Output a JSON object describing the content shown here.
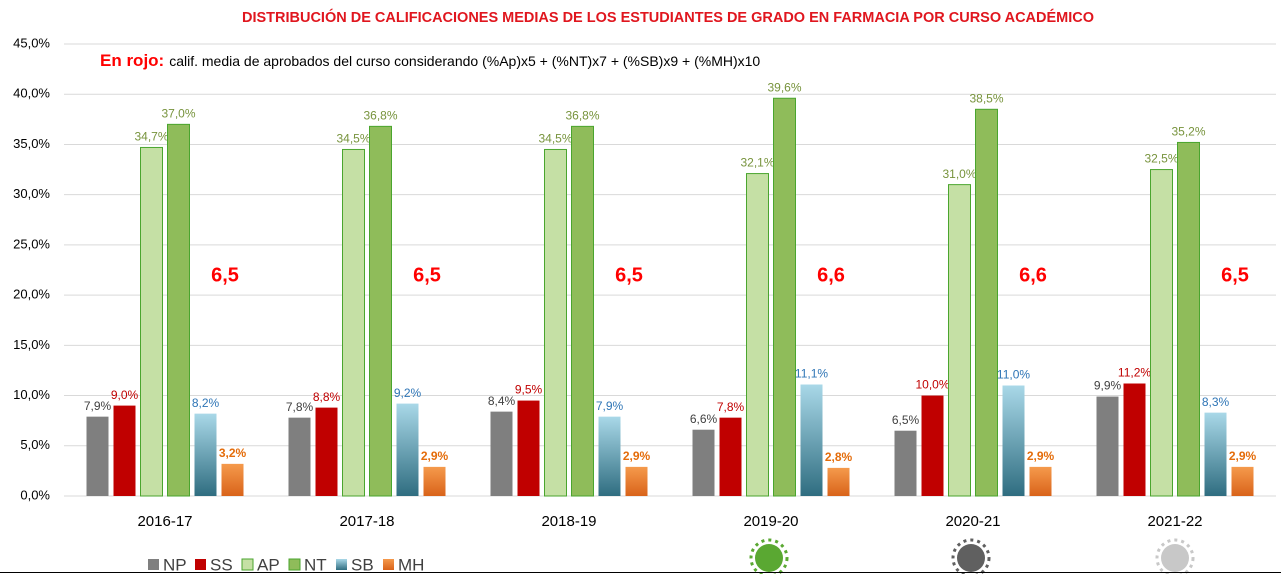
{
  "chart_data": {
    "type": "bar",
    "title": "DISTRIBUCIÓN DE CALIFICACIONES MEDIAS DE LOS ESTUDIANTES DE GRADO EN FARMACIA POR CURSO ACADÉMICO",
    "annotation_label": "En rojo:",
    "annotation": "calif. media de aprobados del curso considerando (%Ap)x5 + (%NT)x7 + (%SB)x9 + (%MH)x10",
    "group_annotations": [
      "6,5",
      "6,5",
      "6,5",
      "6,6",
      "6,6",
      "6,5"
    ],
    "categories": [
      "2016-17",
      "2017-18",
      "2018-19",
      "2019-20",
      "2020-21",
      "2021-22"
    ],
    "series": [
      {
        "name": "NP",
        "color": "#7f7f7f",
        "label_color": "#404040",
        "values": [
          7.9,
          7.8,
          8.4,
          6.6,
          6.5,
          9.9
        ],
        "value_labels": [
          "7,9%",
          "7,8%",
          "8,4%",
          "6,6%",
          "6,5%",
          "9,9%"
        ]
      },
      {
        "name": "SS",
        "color": "#c00000",
        "label_color": "#c00000",
        "values": [
          9.0,
          8.8,
          9.5,
          7.8,
          10.0,
          11.2
        ],
        "value_labels": [
          "9,0%",
          "8,8%",
          "9,5%",
          "7,8%",
          "10,0%",
          "11,2%"
        ]
      },
      {
        "name": "AP",
        "color": "#c5e0a5",
        "label_color": "#77933c",
        "values": [
          34.7,
          34.5,
          34.5,
          32.1,
          31.0,
          32.5
        ],
        "value_labels": [
          "34,7%",
          "34,5%",
          "34,5%",
          "32,1%",
          "31,0%",
          "32,5%"
        ]
      },
      {
        "name": "NT",
        "color": "#8fbc5a",
        "label_color": "#77933c",
        "values": [
          37.0,
          36.8,
          36.8,
          39.6,
          38.5,
          35.2
        ],
        "value_labels": [
          "37,0%",
          "36,8%",
          "36,8%",
          "39,6%",
          "38,5%",
          "35,2%"
        ]
      },
      {
        "name": "SB",
        "color": "#5fb0cc",
        "label_color": "#2e75b6",
        "values": [
          8.2,
          9.2,
          7.9,
          11.1,
          11.0,
          8.3
        ],
        "value_labels": [
          "8,2%",
          "9,2%",
          "7,9%",
          "11,1%",
          "11,0%",
          "8,3%"
        ]
      },
      {
        "name": "MH",
        "color": "#ed7d31",
        "label_color": "#e46c0a",
        "values": [
          3.2,
          2.9,
          2.9,
          2.8,
          2.9,
          2.9
        ],
        "value_labels": [
          "3,2%",
          "2,9%",
          "2,9%",
          "2,8%",
          "2,9%",
          "2,9%"
        ]
      }
    ],
    "ylim": [
      0,
      45
    ],
    "yticks": [
      {
        "value": 0,
        "label": "0,0%"
      },
      {
        "value": 5,
        "label": "5,0%"
      },
      {
        "value": 10,
        "label": "10,0%"
      },
      {
        "value": 15,
        "label": "15,0%"
      },
      {
        "value": 20,
        "label": "20,0%"
      },
      {
        "value": 25,
        "label": "25,0%"
      },
      {
        "value": 30,
        "label": "30,0%"
      },
      {
        "value": 35,
        "label": "35,0%"
      },
      {
        "value": 40,
        "label": "40,0%"
      },
      {
        "value": 45,
        "label": "45,0%"
      }
    ],
    "grid": true,
    "legend": "bottom"
  }
}
